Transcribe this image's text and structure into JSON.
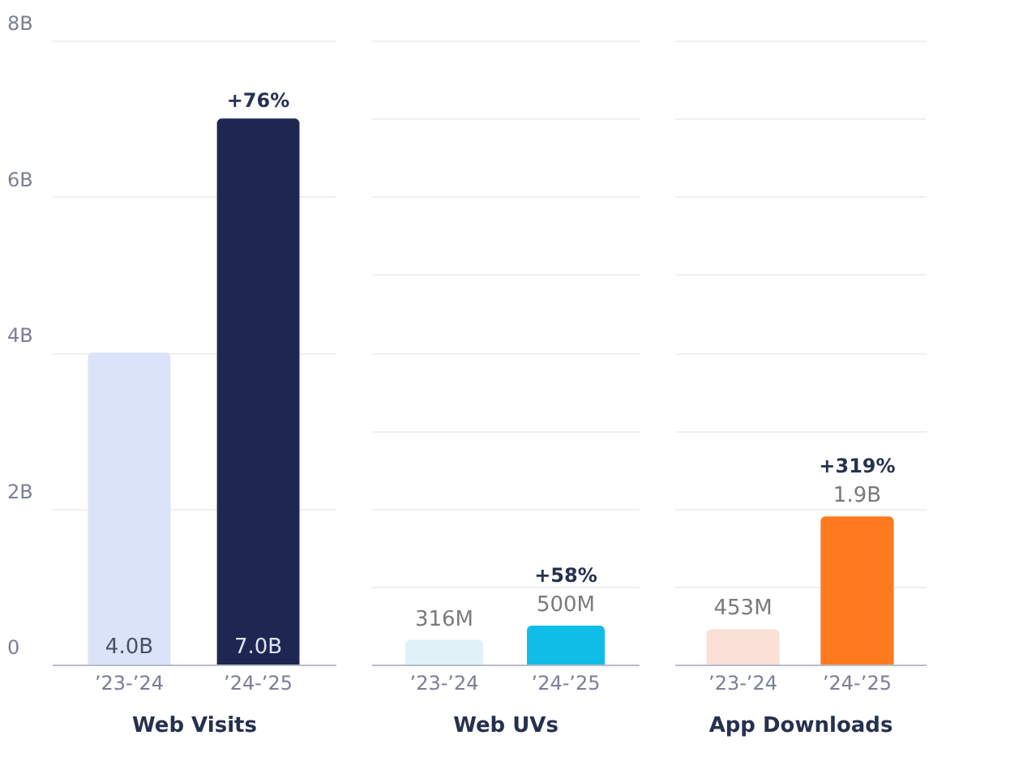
{
  "chart_data": [
    {
      "type": "bar",
      "xlabel": "Web Visits",
      "categories": [
        "’23-’24",
        "’24-’25"
      ],
      "values": [
        4.0,
        7.0
      ],
      "colors": [
        "#dbe3f9",
        "#1e2752"
      ],
      "value_labels": [
        "4.0B",
        "7.0B"
      ],
      "ylim": [
        0,
        8
      ],
      "yticks": [
        0,
        {
          "value": 2,
          "label": "2B"
        },
        {
          "value": 4,
          "label": "4B"
        },
        {
          "value": 6,
          "label": "6B"
        },
        {
          "value": 8,
          "label": "8B"
        }
      ],
      "grid": "y",
      "annotations": [
        {
          "text": "+76%",
          "x": "’24-’25",
          "y": 7.0
        }
      ]
    },
    {
      "type": "bar",
      "xlabel": "Web UVs",
      "categories": [
        "’23-’24",
        "’24-’25"
      ],
      "values": [
        316000000,
        500000000
      ],
      "colors": [
        "#e1f1f8",
        "#10bde6"
      ],
      "value_labels": [
        "316M",
        "500M"
      ],
      "ylim": [
        0,
        8000000000
      ],
      "yticks": [
        {
          "value": 0,
          "label": null
        },
        {
          "value": 1000000000,
          "label": null
        },
        {
          "value": 2000000000,
          "label": null
        },
        {
          "value": 3000000000,
          "label": null
        },
        {
          "value": 4000000000,
          "label": null
        },
        {
          "value": 5000000000,
          "label": null
        },
        {
          "value": 6000000000,
          "label": null
        },
        {
          "value": 7000000000,
          "label": null
        },
        {
          "value": 8000000000,
          "label": null
        }
      ],
      "tick_labels": "x",
      "grid": "y",
      "annotations": [
        {
          "text": "+58%",
          "x": "’24-’25",
          "y": 500000000
        }
      ]
    },
    {
      "type": "bar",
      "xlabel": "App Downloads",
      "categories": [
        "’23-’24",
        "’24-’25"
      ],
      "values": [
        453000000,
        1900000000
      ],
      "colors": [
        "#fae0d6",
        "#fe7a1f"
      ],
      "value_labels": [
        "453M",
        "1.9B"
      ],
      "ylim": [
        0,
        8000000000
      ],
      "yticks": [
        {
          "value": 0,
          "label": null
        },
        {
          "value": 1000000000,
          "label": null
        },
        {
          "value": 2000000000,
          "label": null
        },
        {
          "value": 3000000000,
          "label": null
        },
        {
          "value": 4000000000,
          "label": null
        },
        {
          "value": 5000000000,
          "label": null
        },
        {
          "value": 6000000000,
          "label": null
        },
        {
          "value": 7000000000,
          "label": null
        },
        {
          "value": 8000000000,
          "label": null
        }
      ],
      "tick_labels": "x",
      "grid": "y",
      "annotations": [
        {
          "text": "+319%",
          "x": "’24-’25",
          "y": 1900000000
        }
      ]
    }
  ]
}
